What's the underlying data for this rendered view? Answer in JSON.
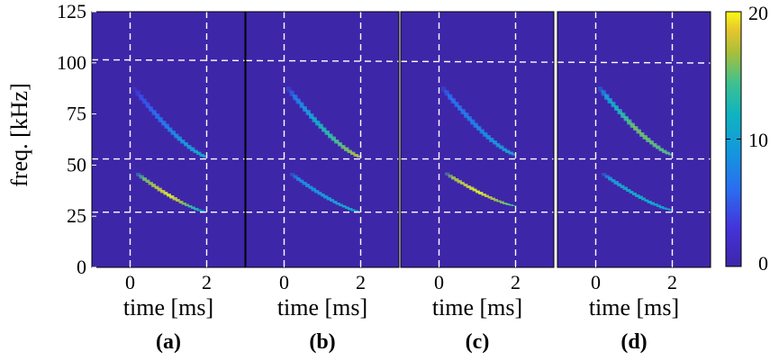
{
  "chart_data": {
    "type": "heatmap",
    "ylabel": "freq. [kHz]",
    "xlabel": "time [ms]",
    "ylim": [
      0,
      125
    ],
    "xlim": [
      -1,
      3
    ],
    "y_ticks": [
      "0",
      "25",
      "50",
      "75",
      "100",
      "125"
    ],
    "x_ticks": [
      "0",
      "2"
    ],
    "y_tick_values": [
      0,
      25,
      50,
      75,
      100,
      125
    ],
    "x_tick_values": [
      0,
      2
    ],
    "colorbar": {
      "min": 0,
      "max": 20,
      "ticks": [
        "0",
        "10",
        "20"
      ]
    },
    "colors": {
      "background": "#3e26a8",
      "low": "#2f4be0",
      "mid": "#1fa8d0",
      "high": "#f9fb15"
    },
    "grid": "dashed white lines at t=0, t=2, 27, 53 and 101 kHz",
    "panels": [
      {
        "label": "(a)",
        "curves": [
          {
            "t": [
              0.1,
              2.0
            ],
            "f": [
              47,
              27
            ],
            "intensity": [
              14,
              20,
              10
            ]
          },
          {
            "t": [
              0.0,
              2.0
            ],
            "f": [
              90,
              54
            ],
            "intensity": [
              3,
              8,
              12
            ]
          }
        ]
      },
      {
        "label": "(b)",
        "curves": [
          {
            "t": [
              0.1,
              2.0
            ],
            "f": [
              47,
              27
            ],
            "intensity": [
              8,
              10,
              12
            ]
          },
          {
            "t": [
              0.0,
              2.0
            ],
            "f": [
              90,
              54
            ],
            "intensity": [
              5,
              13,
              18
            ]
          }
        ]
      },
      {
        "label": "(c)",
        "curves": [
          {
            "t": [
              0.1,
              2.0
            ],
            "f": [
              47,
              30
            ],
            "intensity": [
              16,
              20,
              14
            ]
          },
          {
            "t": [
              0.0,
              2.0
            ],
            "f": [
              90,
              55
            ],
            "intensity": [
              6,
              8,
              11
            ]
          }
        ]
      },
      {
        "label": "(d)",
        "curves": [
          {
            "t": [
              0.1,
              2.0
            ],
            "f": [
              47,
              28
            ],
            "intensity": [
              9,
              12,
              11
            ]
          },
          {
            "t": [
              0.0,
              2.0
            ],
            "f": [
              90,
              55
            ],
            "intensity": [
              8,
              16,
              15
            ]
          }
        ]
      }
    ]
  }
}
